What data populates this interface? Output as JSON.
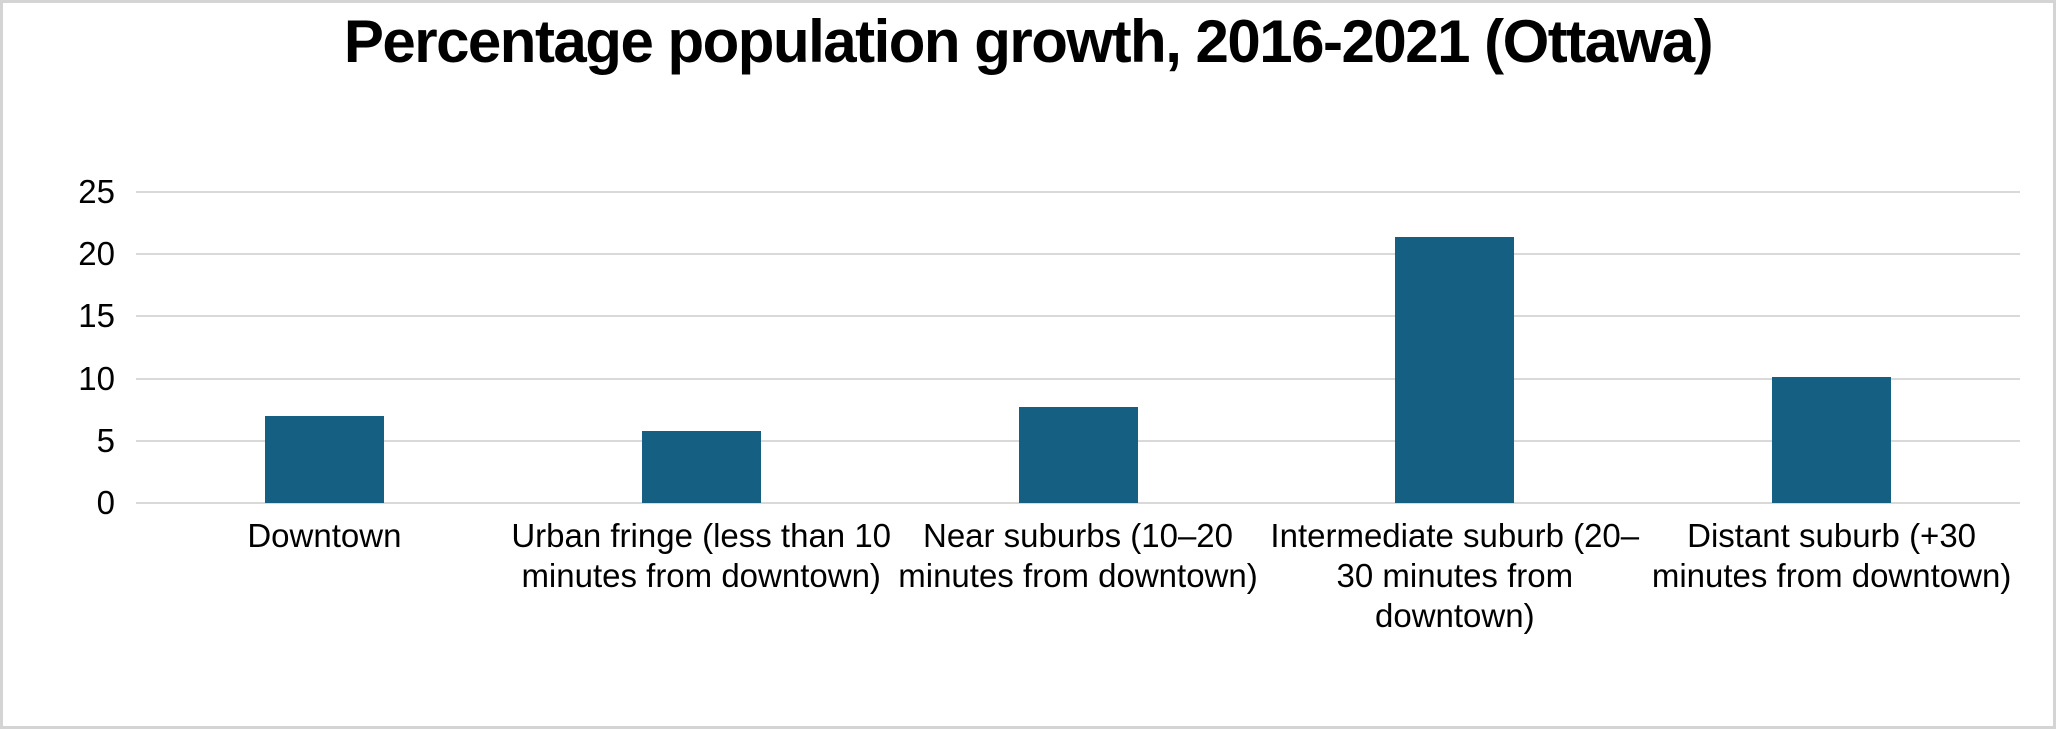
{
  "chart_data": {
    "type": "bar",
    "title": "Percentage population growth, 2016-2021 (Ottawa)",
    "categories": [
      "Downtown",
      "Urban fringe (less than 10\nminutes from downtown)",
      "Near suburbs (10–20\nminutes from downtown)",
      "Intermediate suburb (20–\n30 minutes from\ndowntown)",
      "Distant suburb (+30\nminutes from downtown)"
    ],
    "values": [
      7.0,
      5.8,
      7.7,
      21.4,
      10.1
    ],
    "xlabel": "",
    "ylabel": "",
    "ylim": [
      0,
      25
    ],
    "yticks": [
      0,
      5,
      10,
      15,
      20,
      25
    ],
    "grid": true,
    "legend": false,
    "bar_color": "#156082",
    "gridline_color": "#d9d9d9",
    "text_color": "#000000"
  }
}
